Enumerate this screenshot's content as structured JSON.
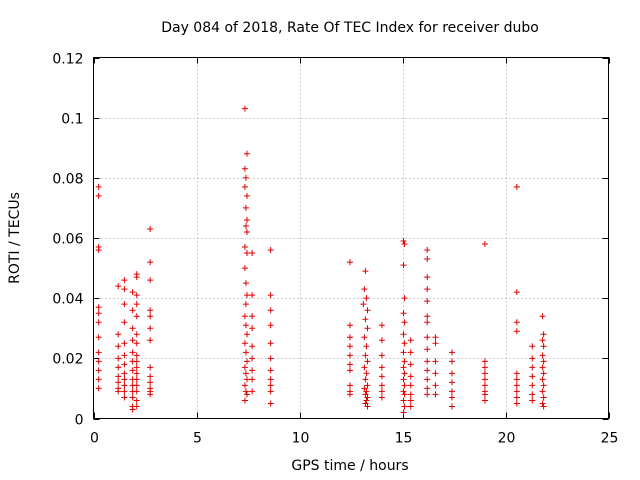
{
  "chart_data": {
    "type": "scatter",
    "title": "Day 084 of 2018, Rate Of TEC Index for receiver dubo",
    "xlabel": "GPS time / hours",
    "ylabel": "ROTI / TECUs",
    "xlim": [
      0,
      25
    ],
    "ylim": [
      0,
      0.12
    ],
    "xticks": [
      0,
      5,
      10,
      15,
      20,
      25
    ],
    "yticks": [
      0,
      0.02,
      0.04,
      0.06,
      0.08,
      0.1,
      0.12
    ],
    "xtick_labels": [
      "0",
      "5",
      "10",
      "15",
      "20",
      "25"
    ],
    "ytick_labels": [
      "0",
      "0.02",
      "0.04",
      "0.06",
      "0.08",
      "0.1",
      "0.12"
    ],
    "grid": true,
    "marker": "+",
    "marker_color": "#e00000",
    "series": [
      {
        "points": [
          [
            0.25,
            0.077
          ],
          [
            0.25,
            0.074
          ],
          [
            0.25,
            0.057
          ],
          [
            0.25,
            0.056
          ],
          [
            0.25,
            0.037
          ],
          [
            0.25,
            0.035
          ],
          [
            0.25,
            0.032
          ],
          [
            0.25,
            0.027
          ],
          [
            0.25,
            0.022
          ],
          [
            0.25,
            0.019
          ],
          [
            0.25,
            0.016
          ],
          [
            0.25,
            0.013
          ],
          [
            0.25,
            0.01
          ],
          [
            1.2,
            0.044
          ],
          [
            1.2,
            0.028
          ],
          [
            1.2,
            0.024
          ],
          [
            1.2,
            0.02
          ],
          [
            1.2,
            0.017
          ],
          [
            1.2,
            0.014
          ],
          [
            1.2,
            0.012
          ],
          [
            1.2,
            0.01
          ],
          [
            1.2,
            0.009
          ],
          [
            1.5,
            0.046
          ],
          [
            1.5,
            0.043
          ],
          [
            1.5,
            0.038
          ],
          [
            1.5,
            0.032
          ],
          [
            1.5,
            0.025
          ],
          [
            1.5,
            0.021
          ],
          [
            1.5,
            0.018
          ],
          [
            1.5,
            0.015
          ],
          [
            1.5,
            0.013
          ],
          [
            1.5,
            0.011
          ],
          [
            1.5,
            0.009
          ],
          [
            1.5,
            0.007
          ],
          [
            1.9,
            0.042
          ],
          [
            1.9,
            0.036
          ],
          [
            1.9,
            0.03
          ],
          [
            1.9,
            0.026
          ],
          [
            1.9,
            0.022
          ],
          [
            1.9,
            0.019
          ],
          [
            1.9,
            0.016
          ],
          [
            1.9,
            0.013
          ],
          [
            1.9,
            0.011
          ],
          [
            1.9,
            0.009
          ],
          [
            1.9,
            0.007
          ],
          [
            1.9,
            0.004
          ],
          [
            1.9,
            0.003
          ],
          [
            2.1,
            0.048
          ],
          [
            2.1,
            0.047
          ],
          [
            2.1,
            0.041
          ],
          [
            2.1,
            0.038
          ],
          [
            2.1,
            0.034
          ],
          [
            2.1,
            0.028
          ],
          [
            2.1,
            0.025
          ],
          [
            2.1,
            0.021
          ],
          [
            2.1,
            0.019
          ],
          [
            2.1,
            0.017
          ],
          [
            2.1,
            0.015
          ],
          [
            2.1,
            0.013
          ],
          [
            2.1,
            0.011
          ],
          [
            2.1,
            0.009
          ],
          [
            2.1,
            0.006
          ],
          [
            2.1,
            0.004
          ],
          [
            2.75,
            0.063
          ],
          [
            2.75,
            0.052
          ],
          [
            2.75,
            0.046
          ],
          [
            2.75,
            0.036
          ],
          [
            2.75,
            0.034
          ],
          [
            2.75,
            0.03
          ],
          [
            2.75,
            0.026
          ],
          [
            2.75,
            0.017
          ],
          [
            2.75,
            0.014
          ],
          [
            2.75,
            0.012
          ],
          [
            2.75,
            0.01
          ],
          [
            2.75,
            0.009
          ],
          [
            2.75,
            0.008
          ],
          [
            7.35,
            0.103
          ],
          [
            7.45,
            0.088
          ],
          [
            7.35,
            0.083
          ],
          [
            7.4,
            0.08
          ],
          [
            7.35,
            0.077
          ],
          [
            7.45,
            0.074
          ],
          [
            7.4,
            0.07
          ],
          [
            7.45,
            0.066
          ],
          [
            7.4,
            0.064
          ],
          [
            7.45,
            0.062
          ],
          [
            7.35,
            0.057
          ],
          [
            7.45,
            0.055
          ],
          [
            7.35,
            0.05
          ],
          [
            7.4,
            0.045
          ],
          [
            7.45,
            0.041
          ],
          [
            7.4,
            0.038
          ],
          [
            7.35,
            0.034
          ],
          [
            7.4,
            0.031
          ],
          [
            7.45,
            0.028
          ],
          [
            7.35,
            0.025
          ],
          [
            7.4,
            0.022
          ],
          [
            7.45,
            0.019
          ],
          [
            7.35,
            0.017
          ],
          [
            7.4,
            0.015
          ],
          [
            7.45,
            0.013
          ],
          [
            7.35,
            0.011
          ],
          [
            7.4,
            0.009
          ],
          [
            7.45,
            0.008
          ],
          [
            7.35,
            0.006
          ],
          [
            7.7,
            0.055
          ],
          [
            7.7,
            0.041
          ],
          [
            7.7,
            0.034
          ],
          [
            7.7,
            0.03
          ],
          [
            7.7,
            0.024
          ],
          [
            7.7,
            0.02
          ],
          [
            7.7,
            0.016
          ],
          [
            7.7,
            0.013
          ],
          [
            7.7,
            0.009
          ],
          [
            8.6,
            0.056
          ],
          [
            8.6,
            0.041
          ],
          [
            8.6,
            0.036
          ],
          [
            8.6,
            0.031
          ],
          [
            8.6,
            0.025
          ],
          [
            8.6,
            0.02
          ],
          [
            8.6,
            0.016
          ],
          [
            8.6,
            0.013
          ],
          [
            8.6,
            0.011
          ],
          [
            8.6,
            0.009
          ],
          [
            8.6,
            0.005
          ],
          [
            12.45,
            0.052
          ],
          [
            12.45,
            0.031
          ],
          [
            12.45,
            0.027
          ],
          [
            12.45,
            0.024
          ],
          [
            12.45,
            0.021
          ],
          [
            12.45,
            0.018
          ],
          [
            12.45,
            0.016
          ],
          [
            12.45,
            0.011
          ],
          [
            12.45,
            0.009
          ],
          [
            12.45,
            0.008
          ],
          [
            13.1,
            0.038
          ],
          [
            13.2,
            0.049
          ],
          [
            13.15,
            0.043
          ],
          [
            13.25,
            0.04
          ],
          [
            13.3,
            0.036
          ],
          [
            13.2,
            0.033
          ],
          [
            13.3,
            0.03
          ],
          [
            13.15,
            0.027
          ],
          [
            13.25,
            0.024
          ],
          [
            13.2,
            0.021
          ],
          [
            13.3,
            0.019
          ],
          [
            13.15,
            0.017
          ],
          [
            13.25,
            0.015
          ],
          [
            13.2,
            0.013
          ],
          [
            13.3,
            0.011
          ],
          [
            13.15,
            0.01
          ],
          [
            13.25,
            0.009
          ],
          [
            13.2,
            0.008
          ],
          [
            13.3,
            0.007
          ],
          [
            13.25,
            0.006
          ],
          [
            13.2,
            0.005
          ],
          [
            13.3,
            0.004
          ],
          [
            14.0,
            0.031
          ],
          [
            14.0,
            0.026
          ],
          [
            14.0,
            0.021
          ],
          [
            14.0,
            0.017
          ],
          [
            14.0,
            0.014
          ],
          [
            14.0,
            0.011
          ],
          [
            14.0,
            0.009
          ],
          [
            14.0,
            0.007
          ],
          [
            15.05,
            0.059
          ],
          [
            15.1,
            0.058
          ],
          [
            15.05,
            0.051
          ],
          [
            15.1,
            0.04
          ],
          [
            15.05,
            0.035
          ],
          [
            15.1,
            0.032
          ],
          [
            15.05,
            0.028
          ],
          [
            15.1,
            0.025
          ],
          [
            15.05,
            0.022
          ],
          [
            15.1,
            0.019
          ],
          [
            15.05,
            0.017
          ],
          [
            15.1,
            0.015
          ],
          [
            15.05,
            0.013
          ],
          [
            15.1,
            0.011
          ],
          [
            15.05,
            0.009
          ],
          [
            15.1,
            0.008
          ],
          [
            15.05,
            0.006
          ],
          [
            15.1,
            0.004
          ],
          [
            15.05,
            0.002
          ],
          [
            15.4,
            0.026
          ],
          [
            15.4,
            0.022
          ],
          [
            15.4,
            0.018
          ],
          [
            15.4,
            0.014
          ],
          [
            15.4,
            0.011
          ],
          [
            15.4,
            0.008
          ],
          [
            15.4,
            0.006
          ],
          [
            15.4,
            0.004
          ],
          [
            16.2,
            0.056
          ],
          [
            16.2,
            0.053
          ],
          [
            16.2,
            0.047
          ],
          [
            16.2,
            0.043
          ],
          [
            16.2,
            0.039
          ],
          [
            16.2,
            0.034
          ],
          [
            16.2,
            0.032
          ],
          [
            16.2,
            0.027
          ],
          [
            16.2,
            0.023
          ],
          [
            16.2,
            0.019
          ],
          [
            16.2,
            0.016
          ],
          [
            16.2,
            0.013
          ],
          [
            16.2,
            0.01
          ],
          [
            16.2,
            0.008
          ],
          [
            16.6,
            0.027
          ],
          [
            16.6,
            0.025
          ],
          [
            16.6,
            0.019
          ],
          [
            16.6,
            0.015
          ],
          [
            16.6,
            0.011
          ],
          [
            16.6,
            0.008
          ],
          [
            17.4,
            0.022
          ],
          [
            17.4,
            0.019
          ],
          [
            17.4,
            0.015
          ],
          [
            17.4,
            0.012
          ],
          [
            17.4,
            0.009
          ],
          [
            17.4,
            0.007
          ],
          [
            17.4,
            0.004
          ],
          [
            19.0,
            0.058
          ],
          [
            19.0,
            0.019
          ],
          [
            19.0,
            0.017
          ],
          [
            19.0,
            0.015
          ],
          [
            19.0,
            0.013
          ],
          [
            19.0,
            0.011
          ],
          [
            19.0,
            0.009
          ],
          [
            19.0,
            0.008
          ],
          [
            19.0,
            0.006
          ],
          [
            20.55,
            0.077
          ],
          [
            20.55,
            0.042
          ],
          [
            20.55,
            0.032
          ],
          [
            20.55,
            0.029
          ],
          [
            20.55,
            0.015
          ],
          [
            20.55,
            0.013
          ],
          [
            20.55,
            0.011
          ],
          [
            20.55,
            0.009
          ],
          [
            20.55,
            0.007
          ],
          [
            20.55,
            0.005
          ],
          [
            21.3,
            0.024
          ],
          [
            21.3,
            0.02
          ],
          [
            21.3,
            0.017
          ],
          [
            21.3,
            0.014
          ],
          [
            21.3,
            0.011
          ],
          [
            21.3,
            0.008
          ],
          [
            21.3,
            0.006
          ],
          [
            21.8,
            0.034
          ],
          [
            21.85,
            0.028
          ],
          [
            21.8,
            0.026
          ],
          [
            21.85,
            0.024
          ],
          [
            21.8,
            0.021
          ],
          [
            21.85,
            0.019
          ],
          [
            21.8,
            0.017
          ],
          [
            21.85,
            0.015
          ],
          [
            21.8,
            0.013
          ],
          [
            21.85,
            0.011
          ],
          [
            21.8,
            0.009
          ],
          [
            21.85,
            0.007
          ],
          [
            21.8,
            0.005
          ],
          [
            21.85,
            0.004
          ]
        ]
      }
    ]
  }
}
